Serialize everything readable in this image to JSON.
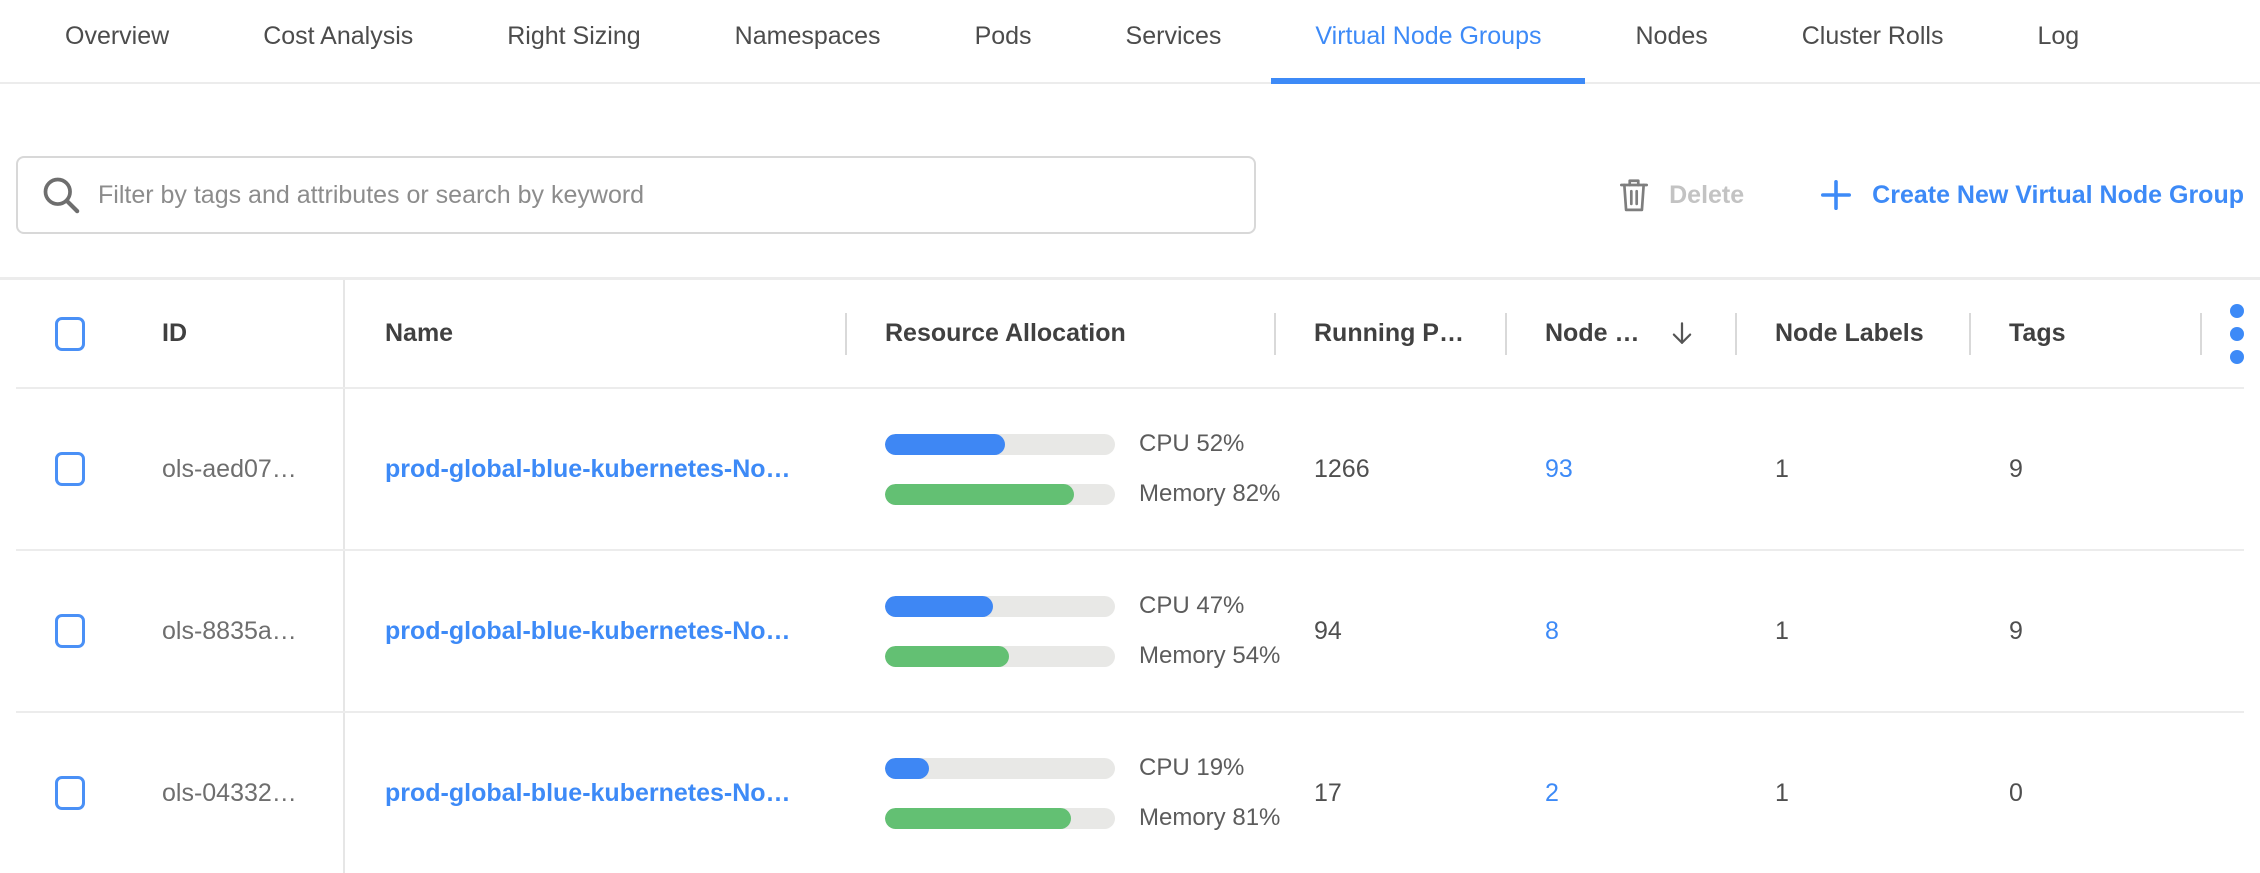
{
  "tabs": [
    {
      "label": "Overview",
      "active": false
    },
    {
      "label": "Cost Analysis",
      "active": false
    },
    {
      "label": "Right Sizing",
      "active": false
    },
    {
      "label": "Namespaces",
      "active": false
    },
    {
      "label": "Pods",
      "active": false
    },
    {
      "label": "Services",
      "active": false
    },
    {
      "label": "Virtual Node Groups",
      "active": true
    },
    {
      "label": "Nodes",
      "active": false
    },
    {
      "label": "Cluster Rolls",
      "active": false
    },
    {
      "label": "Log",
      "active": false
    }
  ],
  "toolbar": {
    "search_placeholder": "Filter by tags and attributes or search by keyword",
    "delete_label": "Delete",
    "create_label": "Create New Virtual Node Group"
  },
  "table": {
    "columns": {
      "id": "ID",
      "name": "Name",
      "resource_allocation": "Resource Allocation",
      "running_pods": "Running P…",
      "nodes": "Node …",
      "node_labels": "Node Labels",
      "tags": "Tags"
    },
    "sort": {
      "column": "nodes",
      "direction": "desc"
    },
    "rows": [
      {
        "id": "ols-aed07…",
        "name": "prod-global-blue-kubernetes-No…",
        "cpu_pct": 52,
        "mem_pct": 82,
        "cpu_label": "CPU 52%",
        "mem_label": "Memory 82%",
        "running_pods": "1266",
        "nodes": "93",
        "node_labels": "1",
        "tags": "9"
      },
      {
        "id": "ols-8835a…",
        "name": "prod-global-blue-kubernetes-No…",
        "cpu_pct": 47,
        "mem_pct": 54,
        "cpu_label": "CPU 47%",
        "mem_label": "Memory 54%",
        "running_pods": "94",
        "nodes": "8",
        "node_labels": "1",
        "tags": "9"
      },
      {
        "id": "ols-04332…",
        "name": "prod-global-blue-kubernetes-No…",
        "cpu_pct": 19,
        "mem_pct": 81,
        "cpu_label": "CPU 19%",
        "mem_label": "Memory 81%",
        "running_pods": "17",
        "nodes": "2",
        "node_labels": "1",
        "tags": "0"
      }
    ]
  },
  "colors": {
    "accent_blue": "#3d8af7",
    "bar_blue": "#3e87f4",
    "bar_green": "#63c073",
    "bar_track": "#e8e8e6",
    "disabled_text": "#c3c3c3"
  }
}
